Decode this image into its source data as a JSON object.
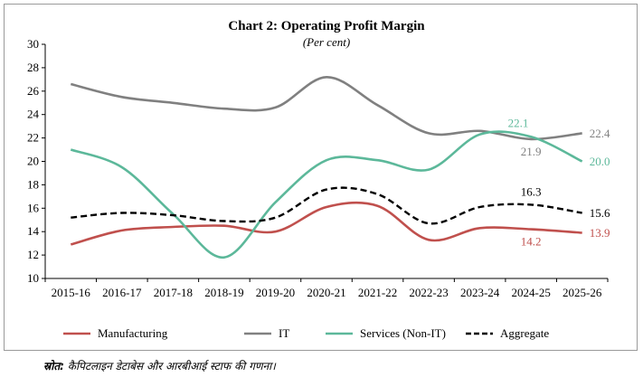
{
  "chart_data": {
    "type": "line",
    "title": "Chart 2: Operating Profit Margin",
    "subtitle": "(Per cent)",
    "xlabel": "",
    "ylabel": "",
    "ylim": [
      10,
      30
    ],
    "yticks": [
      10,
      12,
      14,
      16,
      18,
      20,
      22,
      24,
      26,
      28,
      30
    ],
    "categories": [
      "2015-16",
      "2016-17",
      "2017-18",
      "2018-19",
      "2019-20",
      "2020-21",
      "2021-22",
      "2022-23",
      "2023-24",
      "2024-25",
      "2025-26"
    ],
    "grid": false,
    "legend_position": "bottom",
    "series": [
      {
        "name": "Manufacturing",
        "color": "#c0504d",
        "dash": false,
        "values": [
          12.9,
          14.1,
          14.4,
          14.5,
          14.0,
          16.1,
          16.2,
          13.3,
          14.3,
          14.2,
          13.9
        ],
        "end_label": "13.9",
        "callout": {
          "index": 9,
          "text": "14.2",
          "position": "below"
        }
      },
      {
        "name": "IT",
        "color": "#808080",
        "dash": false,
        "values": [
          26.6,
          25.5,
          25.0,
          24.5,
          24.6,
          27.2,
          24.8,
          22.4,
          22.6,
          21.9,
          22.4
        ],
        "end_label": "22.4",
        "callout": {
          "index": 9,
          "text": "21.9",
          "position": "below"
        }
      },
      {
        "name": "Services (Non-IT)",
        "color": "#5cb89a",
        "dash": false,
        "values": [
          21.0,
          19.5,
          15.5,
          11.8,
          16.5,
          20.1,
          20.1,
          19.3,
          22.3,
          22.1,
          20.0
        ],
        "end_label": "20.0",
        "callout": {
          "index": 8.75,
          "text": "22.1",
          "position": "above"
        }
      },
      {
        "name": "Aggregate",
        "color": "#000000",
        "dash": true,
        "values": [
          15.2,
          15.6,
          15.4,
          14.9,
          15.2,
          17.6,
          17.2,
          14.7,
          16.1,
          16.3,
          15.6
        ],
        "end_label": "15.6",
        "callout": {
          "index": 9,
          "text": "16.3",
          "position": "above"
        }
      }
    ]
  },
  "source_label": "स्रोत:",
  "source_text": " कैपिटलाइन डेटाबेस और आरबीआई स्टाफ की गणना।"
}
